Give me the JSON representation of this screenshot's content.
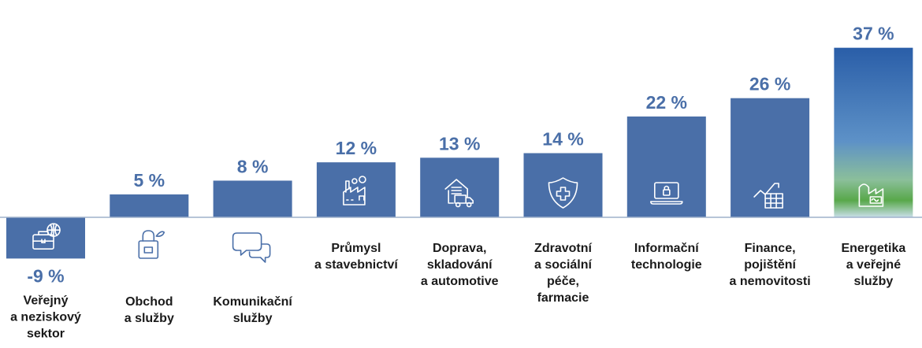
{
  "chart_data": {
    "type": "bar",
    "categories": [
      [
        "Veřejný",
        "a neziskový",
        "sektor"
      ],
      [
        "Obchod",
        "a služby"
      ],
      [
        "Komunikační",
        "služby"
      ],
      [
        "Průmysl",
        "a stavebnictví"
      ],
      [
        "Doprava,",
        "skladování",
        "a automotive"
      ],
      [
        "Zdravotní",
        "a sociální",
        "péče,",
        "farmacie"
      ],
      [
        "Informační",
        "technologie"
      ],
      [
        "Finance,",
        "pojištění",
        "a nemovitosti"
      ],
      [
        "Energetika",
        "a veřejné",
        "služby"
      ]
    ],
    "values": [
      -9,
      5,
      8,
      12,
      13,
      14,
      22,
      26,
      37
    ],
    "value_labels": [
      "-9 %",
      "5 %",
      "8 %",
      "12 %",
      "13 %",
      "14 %",
      "22 %",
      "26 %",
      "37 %"
    ],
    "icons": [
      "briefcase-globe-icon",
      "shopping-bag-icon",
      "chat-bubbles-icon",
      "factory-icon",
      "warehouse-truck-icon",
      "shield-cross-icon",
      "laptop-lock-icon",
      "growth-chart-icon",
      "energy-plant-icon"
    ],
    "colors": {
      "bar": "#4a6fa8",
      "label": "#4a6fa8",
      "axis": "#9fb2cc",
      "highlight_top": "#2a5ea8",
      "highlight_bottom": "#59a64a"
    },
    "ylim": [
      -9,
      37
    ],
    "title": "",
    "xlabel": "",
    "ylabel": ""
  }
}
